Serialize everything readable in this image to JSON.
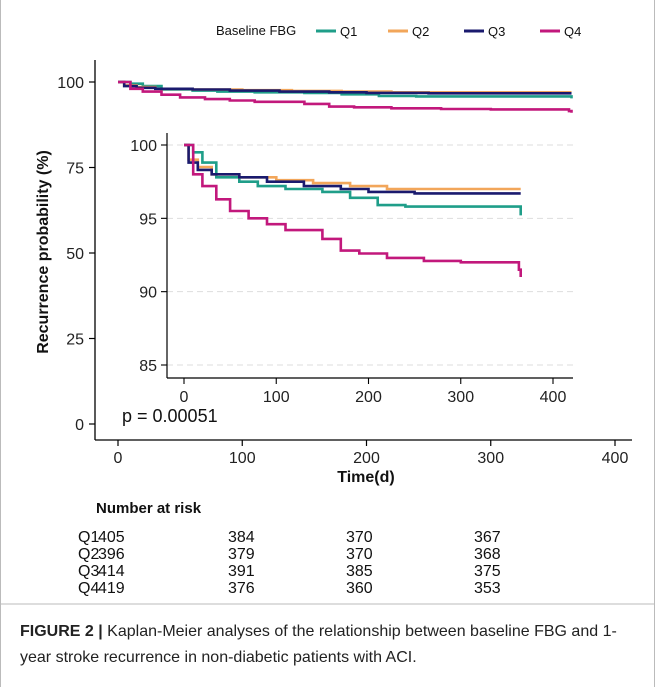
{
  "chart_data": {
    "type": "line",
    "title": "",
    "legend": {
      "title": "Baseline FBG",
      "placement": "top",
      "entries": [
        {
          "name": "Q1",
          "color": "#1f9e89"
        },
        {
          "name": "Q2",
          "color": "#f2a65a"
        },
        {
          "name": "Q3",
          "color": "#1a1a6e"
        },
        {
          "name": "Q4",
          "color": "#c2187c"
        }
      ]
    },
    "xlabel": "Time(d)",
    "ylabel": "Recurrence probability (%)",
    "xlim": [
      0,
      400
    ],
    "ylim": [
      0,
      100
    ],
    "xticks": [
      "0",
      "100",
      "200",
      "300",
      "400"
    ],
    "yticks": [
      "0",
      "25",
      "50",
      "75",
      "100"
    ],
    "pvalue": "p = 0.00051",
    "series": [
      {
        "name": "Q1",
        "color": "#1f9e89",
        "points": [
          [
            0,
            100
          ],
          [
            10,
            99.5
          ],
          [
            20,
            98.8
          ],
          [
            35,
            97.8
          ],
          [
            60,
            97.5
          ],
          [
            80,
            97.2
          ],
          [
            110,
            97.0
          ],
          [
            150,
            96.8
          ],
          [
            180,
            96.4
          ],
          [
            210,
            95.9
          ],
          [
            240,
            95.8
          ],
          [
            280,
            95.8
          ],
          [
            360,
            95.8
          ],
          [
            365,
            95.2
          ]
        ]
      },
      {
        "name": "Q2",
        "color": "#f2a65a",
        "points": [
          [
            0,
            100
          ],
          [
            5,
            99.0
          ],
          [
            15,
            98.5
          ],
          [
            30,
            98.0
          ],
          [
            60,
            97.8
          ],
          [
            100,
            97.6
          ],
          [
            140,
            97.4
          ],
          [
            180,
            97.2
          ],
          [
            220,
            97.0
          ],
          [
            360,
            97.0
          ],
          [
            365,
            97.0
          ]
        ]
      },
      {
        "name": "Q3",
        "color": "#1a1a6e",
        "points": [
          [
            0,
            100
          ],
          [
            5,
            98.8
          ],
          [
            15,
            98.3
          ],
          [
            30,
            98.0
          ],
          [
            60,
            97.8
          ],
          [
            90,
            97.5
          ],
          [
            130,
            97.2
          ],
          [
            170,
            97.0
          ],
          [
            200,
            96.8
          ],
          [
            250,
            96.7
          ],
          [
            360,
            96.7
          ],
          [
            365,
            96.7
          ]
        ]
      },
      {
        "name": "Q4",
        "color": "#c2187c",
        "points": [
          [
            0,
            100
          ],
          [
            10,
            98.0
          ],
          [
            20,
            97.2
          ],
          [
            35,
            96.3
          ],
          [
            50,
            95.5
          ],
          [
            70,
            95.0
          ],
          [
            90,
            94.6
          ],
          [
            110,
            94.2
          ],
          [
            150,
            93.6
          ],
          [
            170,
            92.8
          ],
          [
            190,
            92.6
          ],
          [
            220,
            92.3
          ],
          [
            260,
            92.1
          ],
          [
            300,
            92.0
          ],
          [
            360,
            92.0
          ],
          [
            363,
            91.5
          ],
          [
            365,
            91.0
          ]
        ]
      }
    ],
    "inset": {
      "xlim": [
        0,
        400
      ],
      "ylim": [
        84,
        101
      ],
      "xticks": [
        "0",
        "100",
        "200",
        "300",
        "400"
      ],
      "yticks": [
        "85",
        "90",
        "95",
        "100"
      ],
      "grid": true
    },
    "risk_table": {
      "title": "Number at risk",
      "times": [
        0,
        100,
        200,
        300
      ],
      "rows": [
        {
          "label": "Q1",
          "values": [
            "405",
            "384",
            "370",
            "367"
          ]
        },
        {
          "label": "Q2",
          "values": [
            "396",
            "379",
            "370",
            "368"
          ]
        },
        {
          "label": "Q3",
          "values": [
            "414",
            "391",
            "385",
            "375"
          ]
        },
        {
          "label": "Q4",
          "values": [
            "419",
            "376",
            "360",
            "353"
          ]
        }
      ]
    }
  },
  "caption": {
    "label": "FIGURE 2 |",
    "text": " Kaplan-Meier analyses of the relationship between baseline FBG and 1-year stroke recurrence in non-diabetic patients with ACI."
  }
}
